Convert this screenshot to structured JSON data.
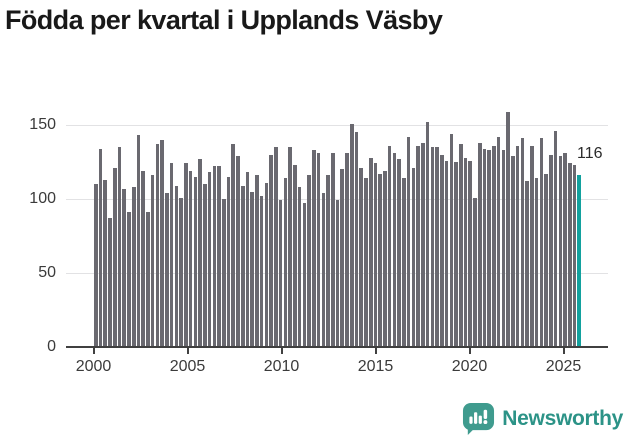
{
  "title": "Födda per kvartal i Upplands Väsby",
  "colors": {
    "bar": "#6a6970",
    "highlight": "#12a19e",
    "grid": "#e2e2e4",
    "axis": "#404040",
    "logo_icon": "#3f9b8e",
    "logo_text": "#2c9387"
  },
  "chart_data": {
    "type": "bar",
    "title": "Födda per kvartal i Upplands Väsby",
    "x_range": [
      "2000 Q1",
      "2025 Q3"
    ],
    "x_tick_labels": [
      "2000",
      "2005",
      "2010",
      "2015",
      "2020",
      "2025"
    ],
    "y_ticks": [
      0,
      50,
      100,
      150
    ],
    "ylim": [
      0,
      160
    ],
    "grid": "horizontal",
    "values": [
      110,
      134,
      113,
      87,
      121,
      135,
      107,
      91,
      108,
      143,
      119,
      91,
      116,
      137,
      140,
      104,
      124,
      109,
      101,
      124,
      119,
      115,
      127,
      110,
      118,
      122,
      122,
      100,
      115,
      137,
      129,
      109,
      118,
      105,
      116,
      102,
      111,
      130,
      135,
      99,
      114,
      135,
      123,
      108,
      97,
      116,
      133,
      131,
      104,
      116,
      131,
      99,
      120,
      131,
      151,
      145,
      121,
      114,
      128,
      124,
      117,
      119,
      136,
      131,
      127,
      114,
      142,
      121,
      136,
      138,
      152,
      135,
      135,
      130,
      126,
      144,
      125,
      137,
      128,
      126,
      101,
      138,
      134,
      133,
      136,
      142,
      133,
      159,
      129,
      136,
      141,
      112,
      136,
      114,
      141,
      117,
      130,
      146,
      129,
      131,
      124,
      123,
      116
    ],
    "highlight_index": 102,
    "annotation": {
      "label": "116",
      "index": 102,
      "value": 116
    }
  },
  "logo": {
    "text": "Newsworthy"
  }
}
